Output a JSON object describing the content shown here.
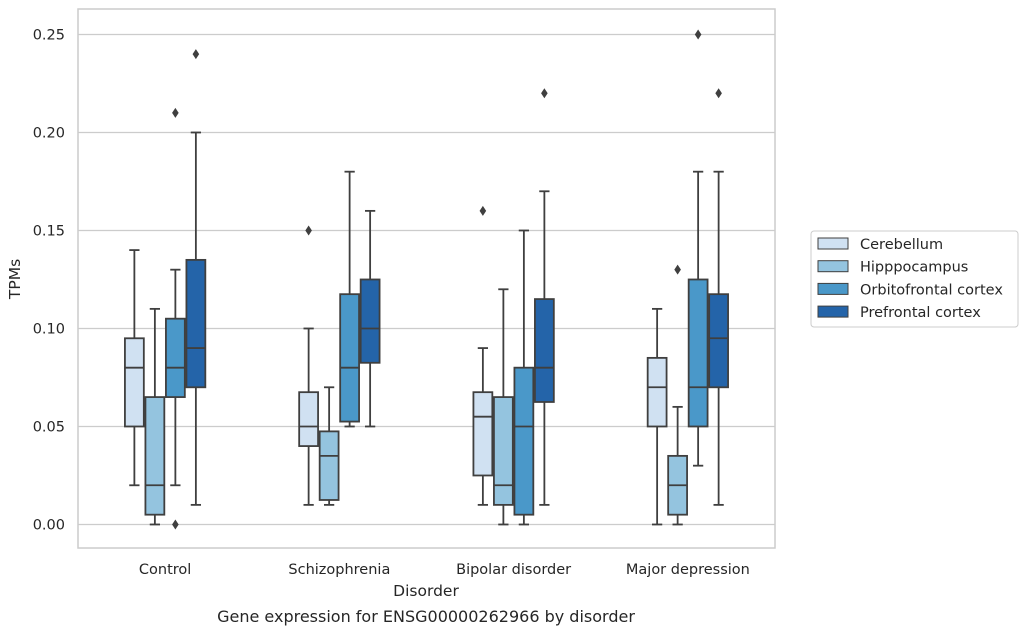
{
  "chart_data": {
    "type": "box",
    "title": "",
    "caption": "Gene expression for ENSG00000262966 by disorder",
    "xlabel": "Disorder",
    "ylabel": "TPMs",
    "ylim": [
      -0.012,
      0.263
    ],
    "yticks": [
      0.0,
      0.05,
      0.1,
      0.15,
      0.2,
      0.25
    ],
    "ytick_labels": [
      "0.00",
      "0.05",
      "0.10",
      "0.15",
      "0.20",
      "0.25"
    ],
    "grid": "horizontal",
    "legend_position": "right",
    "categories": [
      "Control",
      "Schizophrenia",
      "Bipolar disorder",
      "Major depression"
    ],
    "series": [
      {
        "name": "Cerebellum",
        "color": "#d0e1f2",
        "boxes": [
          {
            "min": 0.02,
            "q1": 0.05,
            "median": 0.08,
            "q3": 0.095,
            "max": 0.14,
            "outliers": []
          },
          {
            "min": 0.01,
            "q1": 0.04,
            "median": 0.05,
            "q3": 0.0675,
            "max": 0.1,
            "outliers": [
              0.15
            ]
          },
          {
            "min": 0.01,
            "q1": 0.025,
            "median": 0.055,
            "q3": 0.0675,
            "max": 0.09,
            "outliers": [
              0.16
            ]
          },
          {
            "min": 0.0,
            "q1": 0.05,
            "median": 0.07,
            "q3": 0.085,
            "max": 0.11,
            "outliers": []
          }
        ]
      },
      {
        "name": "Hipppocampus",
        "color": "#94c4df",
        "boxes": [
          {
            "min": 0.0,
            "q1": 0.005,
            "median": 0.02,
            "q3": 0.065,
            "max": 0.11,
            "outliers": []
          },
          {
            "min": 0.01,
            "q1": 0.0125,
            "median": 0.035,
            "q3": 0.0475,
            "max": 0.07,
            "outliers": []
          },
          {
            "min": 0.0,
            "q1": 0.01,
            "median": 0.02,
            "q3": 0.065,
            "max": 0.12,
            "outliers": []
          },
          {
            "min": 0.0,
            "q1": 0.005,
            "median": 0.02,
            "q3": 0.035,
            "max": 0.06,
            "outliers": [
              0.13
            ]
          }
        ]
      },
      {
        "name": "Orbitofrontal cortex",
        "color": "#4a98c9",
        "boxes": [
          {
            "min": 0.02,
            "q1": 0.065,
            "median": 0.08,
            "q3": 0.105,
            "max": 0.13,
            "outliers": [
              0.21,
              0.0
            ]
          },
          {
            "min": 0.05,
            "q1": 0.0525,
            "median": 0.08,
            "q3": 0.1175,
            "max": 0.18,
            "outliers": []
          },
          {
            "min": 0.0,
            "q1": 0.005,
            "median": 0.05,
            "q3": 0.08,
            "max": 0.15,
            "outliers": []
          },
          {
            "min": 0.03,
            "q1": 0.05,
            "median": 0.07,
            "q3": 0.125,
            "max": 0.18,
            "outliers": [
              0.25
            ]
          }
        ]
      },
      {
        "name": "Prefrontal cortex",
        "color": "#2464a9",
        "boxes": [
          {
            "min": 0.01,
            "q1": 0.07,
            "median": 0.09,
            "q3": 0.135,
            "max": 0.2,
            "outliers": [
              0.24
            ]
          },
          {
            "min": 0.05,
            "q1": 0.0825,
            "median": 0.1,
            "q3": 0.125,
            "max": 0.16,
            "outliers": []
          },
          {
            "min": 0.01,
            "q1": 0.0625,
            "median": 0.08,
            "q3": 0.115,
            "max": 0.17,
            "outliers": [
              0.22
            ]
          },
          {
            "min": 0.01,
            "q1": 0.07,
            "median": 0.095,
            "q3": 0.1175,
            "max": 0.18,
            "outliers": [
              0.22
            ]
          }
        ]
      }
    ]
  }
}
